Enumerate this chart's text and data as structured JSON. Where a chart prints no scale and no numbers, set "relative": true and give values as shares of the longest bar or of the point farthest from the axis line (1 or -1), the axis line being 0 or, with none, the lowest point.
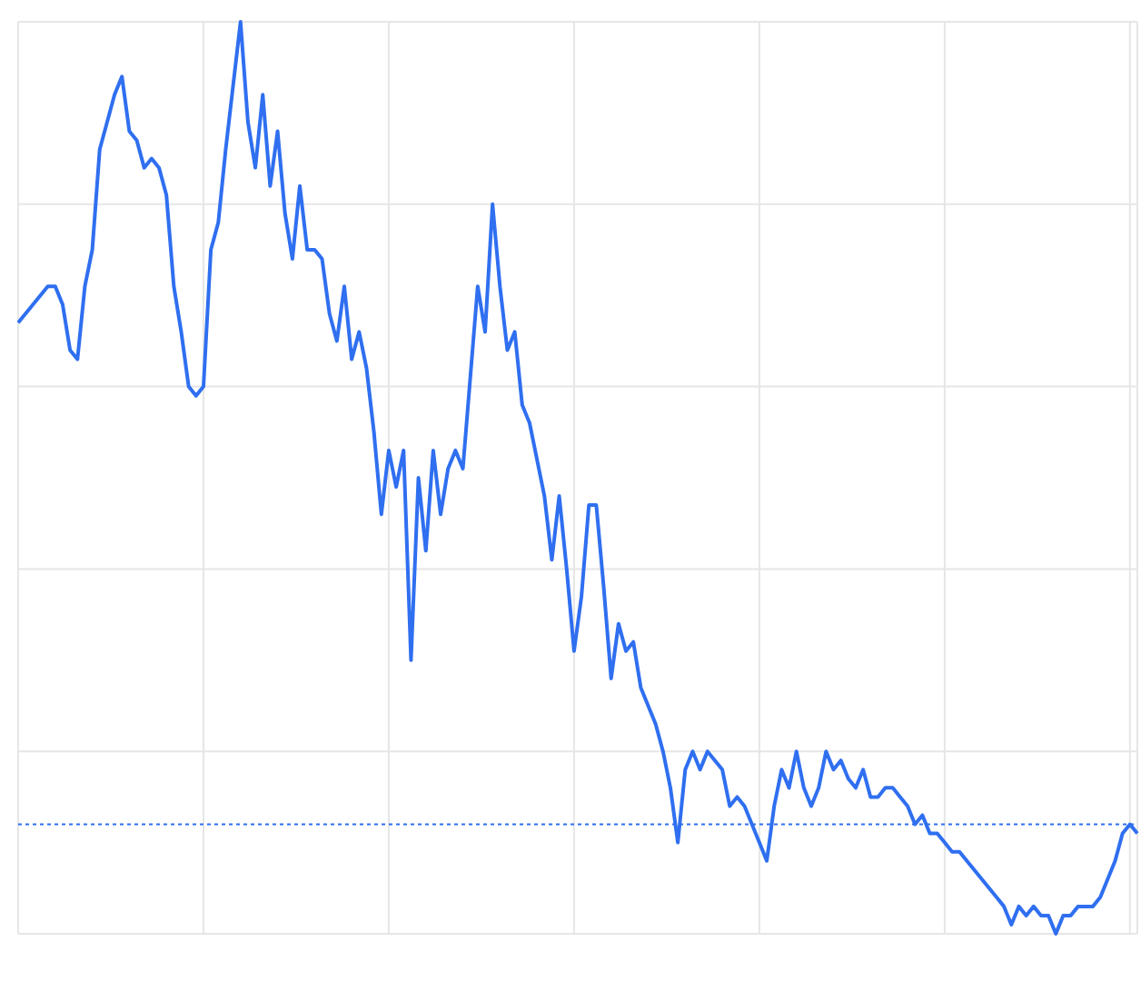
{
  "chart_data": {
    "type": "line",
    "relative": true,
    "grid": true,
    "legend": false,
    "marker": "none",
    "line_style": "solid",
    "categories": [
      null,
      null,
      null,
      null,
      null,
      null,
      null,
      null,
      null,
      null,
      null,
      null,
      null,
      null,
      null,
      null,
      null,
      null,
      null,
      null,
      null,
      null,
      null,
      null,
      null,
      null,
      null,
      null,
      null,
      null,
      null,
      null,
      null,
      null,
      null,
      null,
      null,
      null,
      null,
      null,
      null,
      null,
      null,
      null,
      null,
      null,
      null,
      null,
      null,
      null,
      null,
      null,
      null,
      null,
      null,
      null,
      null,
      null,
      null,
      null,
      null,
      null,
      null,
      null,
      null,
      null,
      null,
      null,
      null,
      null,
      null,
      null,
      null,
      null,
      null,
      null,
      null,
      null,
      null,
      null,
      null,
      null,
      null,
      null,
      null,
      null,
      null,
      null,
      null,
      null,
      null,
      null,
      null,
      null,
      null,
      null,
      null,
      null,
      null,
      null,
      null,
      null,
      null,
      null,
      null,
      null,
      null,
      null,
      null,
      null,
      null,
      null,
      null,
      null,
      null,
      null,
      null,
      null,
      null,
      null,
      null,
      null,
      null,
      null,
      null,
      null,
      null,
      null,
      null,
      null,
      null,
      null,
      null,
      null,
      null,
      null,
      null,
      null,
      null,
      null,
      null,
      null,
      null,
      null,
      null,
      null,
      null,
      null,
      null,
      null,
      null,
      null
    ],
    "series": [
      {
        "color": "#2f6ff0",
        "values": [
          0.67,
          0.68,
          0.69,
          0.7,
          0.71,
          0.71,
          0.69,
          0.64,
          0.63,
          0.71,
          0.75,
          0.86,
          0.89,
          0.92,
          0.94,
          0.88,
          0.87,
          0.84,
          0.85,
          0.84,
          0.81,
          0.71,
          0.66,
          0.6,
          0.59,
          0.6,
          0.75,
          0.78,
          0.86,
          0.93,
          1.0,
          0.89,
          0.84,
          0.92,
          0.82,
          0.88,
          0.79,
          0.74,
          0.82,
          0.75,
          0.75,
          0.74,
          0.68,
          0.65,
          0.71,
          0.63,
          0.66,
          0.62,
          0.55,
          0.46,
          0.53,
          0.49,
          0.53,
          0.3,
          0.5,
          0.42,
          0.53,
          0.46,
          0.51,
          0.53,
          0.51,
          0.61,
          0.71,
          0.66,
          0.8,
          0.71,
          0.64,
          0.66,
          0.58,
          0.56,
          0.52,
          0.48,
          0.41,
          0.48,
          0.4,
          0.31,
          0.37,
          0.47,
          0.47,
          0.38,
          0.28,
          0.34,
          0.31,
          0.32,
          0.27,
          0.25,
          0.23,
          0.2,
          0.16,
          0.1,
          0.18,
          0.2,
          0.18,
          0.2,
          0.19,
          0.18,
          0.14,
          0.15,
          0.14,
          0.12,
          0.1,
          0.08,
          0.14,
          0.18,
          0.16,
          0.2,
          0.16,
          0.14,
          0.16,
          0.2,
          0.18,
          0.19,
          0.17,
          0.16,
          0.18,
          0.15,
          0.15,
          0.16,
          0.16,
          0.15,
          0.14,
          0.12,
          0.13,
          0.11,
          0.11,
          0.1,
          0.09,
          0.09,
          0.08,
          0.07,
          0.06,
          0.05,
          0.04,
          0.03,
          0.01,
          0.03,
          0.02,
          0.03,
          0.02,
          0.02,
          0,
          0.02,
          0.02,
          0.03,
          0.03,
          0.03,
          0.04,
          0.06,
          0.08,
          0.11,
          0.12,
          0.11
        ]
      }
    ],
    "ref_lines": [
      {
        "axis": "y",
        "value": 0.12,
        "color": "#2f6ff0",
        "line_style": "dotted"
      }
    ]
  }
}
